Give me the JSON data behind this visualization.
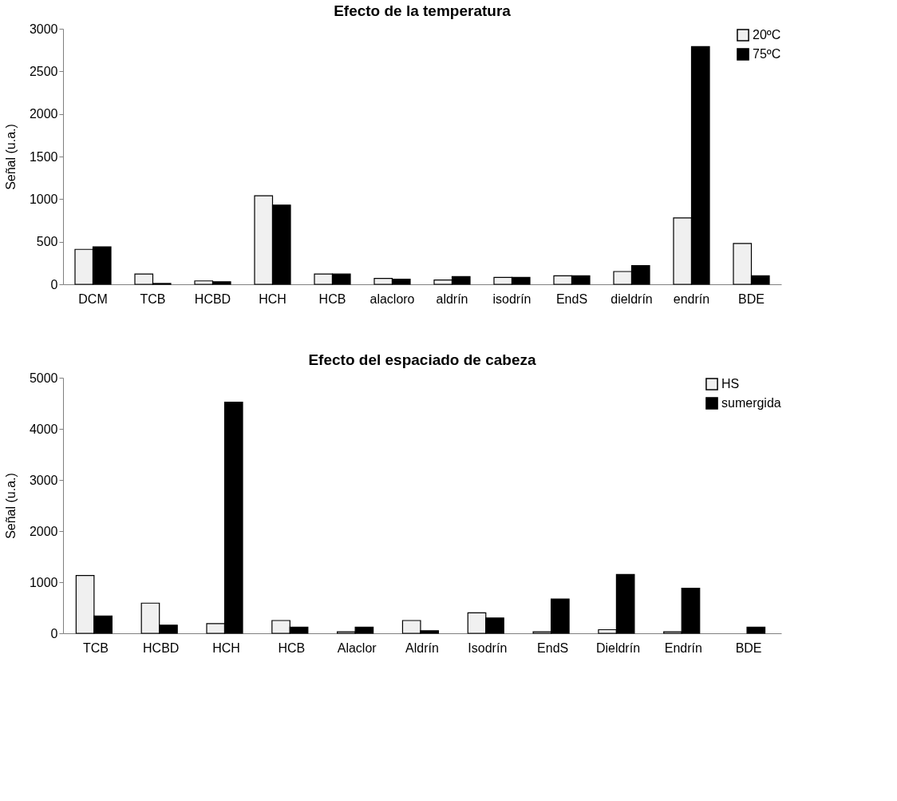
{
  "chart_data": [
    {
      "type": "bar",
      "title": "Efecto de la temperatura",
      "ylabel": "Señal (u.a.)",
      "categories": [
        "DCM",
        "TCB",
        "HCBD",
        "HCH",
        "HCB",
        "alacloro",
        "aldrín",
        "isodrín",
        "EndS",
        "dieldrín",
        "endrín",
        "BDE"
      ],
      "series": [
        {
          "name": "20ºC",
          "color": "#f0f0f0",
          "values": [
            410,
            120,
            40,
            1040,
            120,
            70,
            50,
            80,
            100,
            150,
            780,
            480
          ]
        },
        {
          "name": "75ºC",
          "color": "#000000",
          "values": [
            440,
            10,
            30,
            930,
            120,
            60,
            90,
            80,
            100,
            220,
            2790,
            100
          ]
        }
      ],
      "ylim": [
        0,
        3000
      ],
      "yticks": [
        0,
        500,
        1000,
        1500,
        2000,
        2500,
        3000
      ],
      "grid": false,
      "legend": "top right"
    },
    {
      "type": "bar",
      "title": "Efecto del espaciado de cabeza",
      "ylabel": "Señal (u.a.)",
      "categories": [
        "TCB",
        "HCBD",
        "HCH",
        "HCB",
        "Alaclor",
        "Aldrín",
        "Isodrín",
        "EndS",
        "Dieldrín",
        "Endrín",
        "BDE"
      ],
      "series": [
        {
          "name": "HS",
          "color": "#f0f0f0",
          "values": [
            1130,
            590,
            190,
            250,
            30,
            250,
            400,
            30,
            70,
            30,
            null
          ]
        },
        {
          "name": "sumergida",
          "color": "#000000",
          "values": [
            340,
            160,
            4520,
            120,
            120,
            50,
            300,
            670,
            1150,
            880,
            120
          ]
        }
      ],
      "ylim": [
        0,
        5000
      ],
      "yticks": [
        0,
        1000,
        2000,
        3000,
        4000,
        5000
      ],
      "grid": false,
      "legend": "top right"
    }
  ]
}
